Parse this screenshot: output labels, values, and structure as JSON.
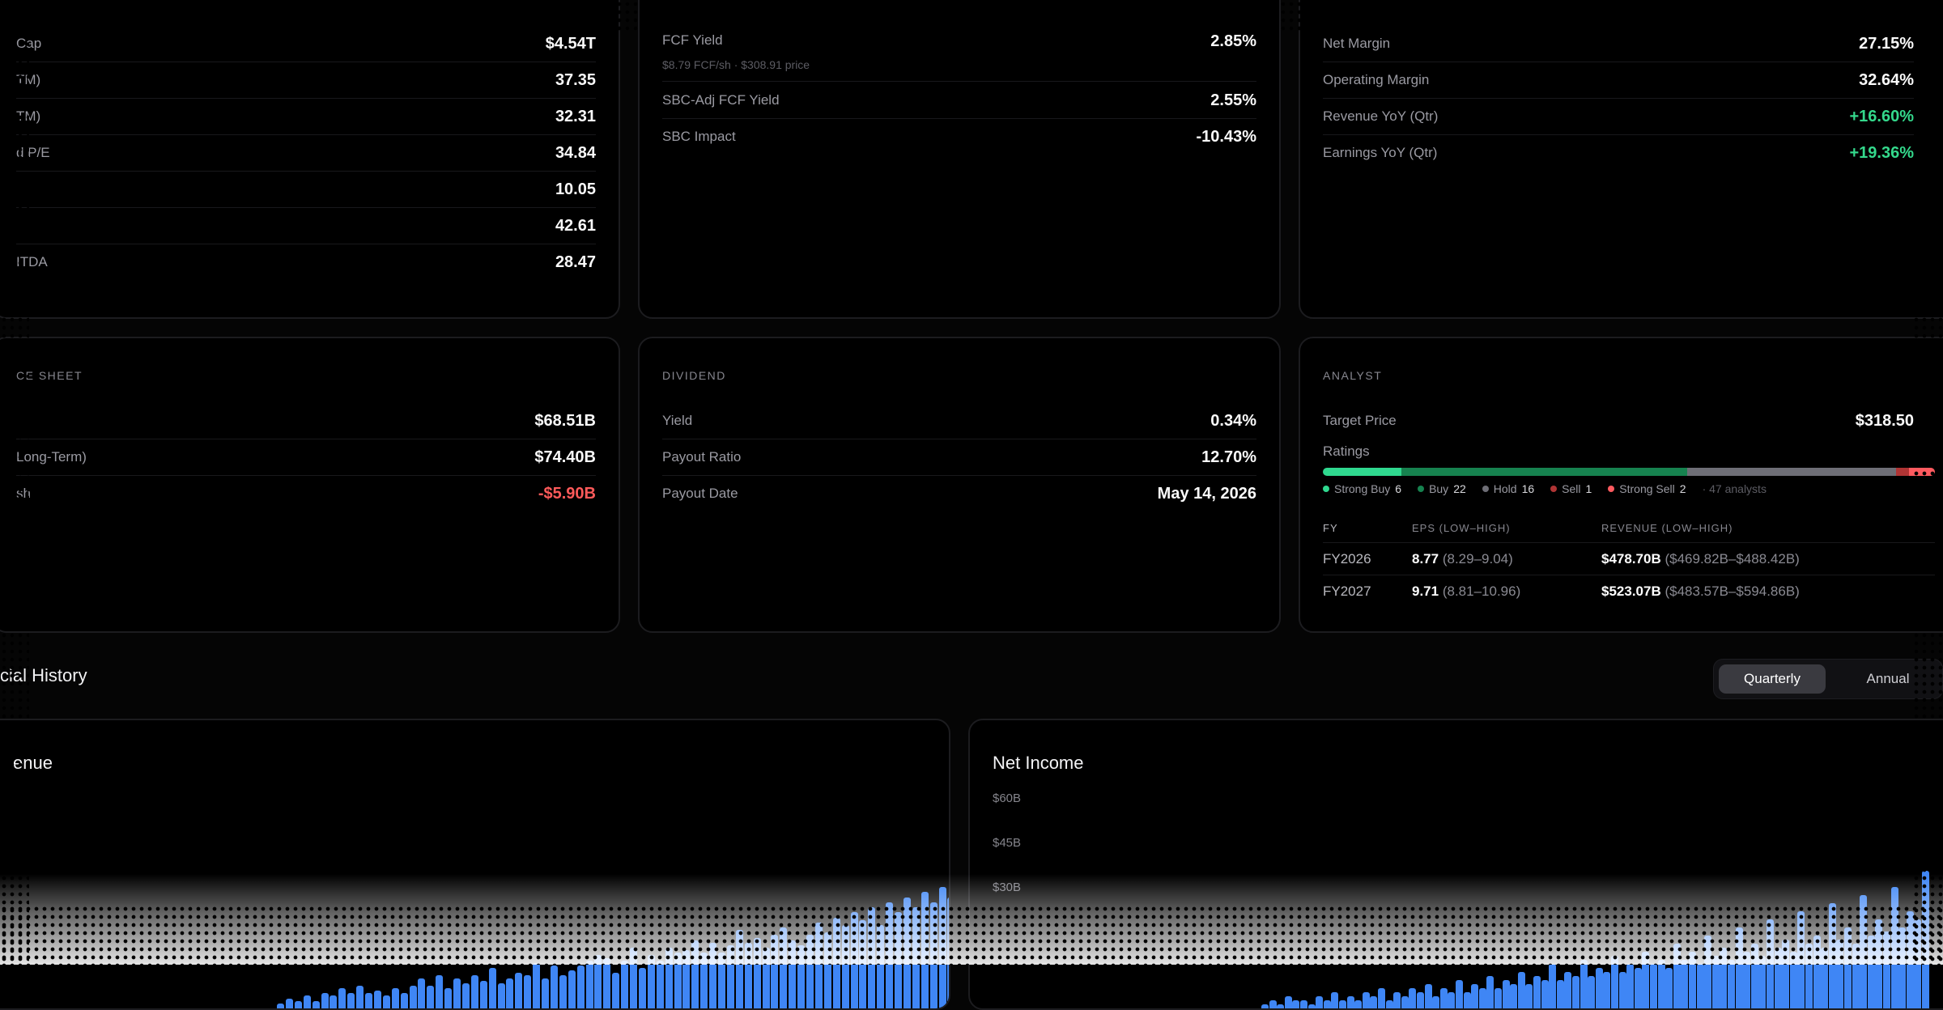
{
  "valuation": {
    "rows": [
      {
        "label": "Cap",
        "value": "$4.54T"
      },
      {
        "label": "TM)",
        "value": "37.35"
      },
      {
        "label": "TM)",
        "value": "32.31"
      },
      {
        "label": "d P/E",
        "value": "34.84"
      },
      {
        "label": "",
        "value": "10.05"
      },
      {
        "label": "",
        "value": "42.61"
      },
      {
        "label": "ITDA",
        "value": "28.47"
      }
    ]
  },
  "cashflow": {
    "rows": [
      {
        "label": "FCF Yield",
        "value": "2.85%"
      },
      {
        "label": "SBC-Adj FCF Yield",
        "value": "2.55%"
      },
      {
        "label": "SBC Impact",
        "value": "-10.43%"
      }
    ],
    "fcf_sub": "$8.79 FCF/sh · $308.91 price"
  },
  "margins": {
    "rows": [
      {
        "label": "Net Margin",
        "value": "27.15%"
      },
      {
        "label": "Operating Margin",
        "value": "32.64%"
      },
      {
        "label": "Revenue YoY (Qtr)",
        "value": "+16.60%"
      },
      {
        "label": "Earnings YoY (Qtr)",
        "value": "+19.36%"
      }
    ]
  },
  "balance": {
    "title": "CE SHEET",
    "rows": [
      {
        "label": "",
        "value": "$68.51B"
      },
      {
        "label": "Long-Term)",
        "value": "$74.40B"
      },
      {
        "label": "sh",
        "value": "-$5.90B"
      }
    ]
  },
  "dividend": {
    "title": "DIVIDEND",
    "rows": [
      {
        "label": "Yield",
        "value": "0.34%"
      },
      {
        "label": "Payout Ratio",
        "value": "12.70%"
      },
      {
        "label": "Payout Date",
        "value": "May 14, 2026"
      }
    ]
  },
  "analyst": {
    "title": "ANALYST",
    "target_label": "Target Price",
    "target_value": "$318.50",
    "ratings_label": "Ratings",
    "ratings": [
      {
        "label": "Strong Buy",
        "count": "6",
        "value": 6,
        "color": "#2fd88f"
      },
      {
        "label": "Buy",
        "count": "22",
        "value": 22,
        "color": "#16824f"
      },
      {
        "label": "Hold",
        "count": "16",
        "value": 16,
        "color": "#6e6e76"
      },
      {
        "label": "Sell",
        "count": "1",
        "value": 1,
        "color": "#b03434"
      },
      {
        "label": "Strong Sell",
        "count": "2",
        "value": 2,
        "color": "#ff5a5f"
      }
    ],
    "analysts_count": "· 47 analysts",
    "estimates_headers": [
      "FY",
      "EPS (LOW–HIGH)",
      "REVENUE (LOW–HIGH)"
    ],
    "estimates": [
      {
        "fy": "FY2026",
        "eps": "8.77",
        "eps_range": "(8.29–9.04)",
        "rev": "$478.70B",
        "rev_range": "($469.82B–$488.42B)"
      },
      {
        "fy": "FY2027",
        "eps": "9.71",
        "eps_range": "(8.81–10.96)",
        "rev": "$523.07B",
        "rev_range": "($483.57B–$594.86B)"
      }
    ]
  },
  "history": {
    "title": "cial History",
    "toggle": {
      "quarterly": "Quarterly",
      "annual": "Annual"
    }
  },
  "revenue_chart": {
    "title": "enue",
    "values": [
      2,
      4,
      3,
      5,
      3,
      6,
      5,
      8,
      6,
      9,
      6,
      7,
      5,
      8,
      6,
      9,
      12,
      9,
      13,
      8,
      12,
      10,
      13,
      11,
      16,
      10,
      12,
      14,
      13,
      18,
      12,
      17,
      13,
      15,
      17,
      19,
      21,
      20,
      14,
      19,
      24,
      16,
      21,
      19,
      24,
      22,
      23,
      27,
      22,
      26,
      22,
      25,
      31,
      26,
      28,
      24,
      29,
      32,
      27,
      25,
      29,
      34,
      30,
      36,
      33,
      38,
      35,
      40,
      33,
      42,
      38,
      44,
      40,
      46,
      42,
      48,
      44,
      50,
      46,
      54,
      48,
      58,
      50,
      56,
      52,
      60,
      56,
      62,
      58,
      64
    ]
  },
  "net_income_chart": {
    "title": "Net Income",
    "yticks": [
      "$60B",
      "$45B",
      "$30B"
    ],
    "values": [
      1,
      2,
      1,
      3,
      2,
      2,
      1,
      3,
      2,
      4,
      2,
      3,
      2,
      4,
      3,
      5,
      2,
      4,
      3,
      5,
      4,
      6,
      3,
      5,
      4,
      7,
      4,
      6,
      5,
      8,
      5,
      7,
      6,
      9,
      6,
      8,
      7,
      11,
      7,
      9,
      8,
      12,
      8,
      10,
      9,
      13,
      9,
      11,
      10,
      14,
      11,
      12,
      10,
      16,
      12,
      14,
      11,
      18,
      13,
      15,
      12,
      20,
      14,
      16,
      13,
      22,
      15,
      17,
      14,
      24,
      16,
      18,
      15,
      26,
      17,
      20,
      16,
      28,
      18,
      22,
      19,
      30,
      20,
      24,
      22,
      34
    ]
  }
}
